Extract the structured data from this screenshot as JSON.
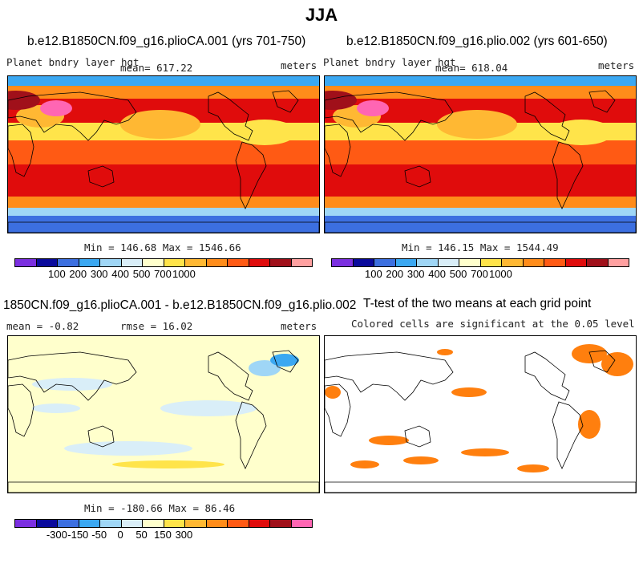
{
  "main_title": "JJA",
  "panel1": {
    "title": "b.e12.B1850CN.f09_g16.plioCA.001 (yrs 701-750)",
    "variable": "Planet bndry layer hgt",
    "mean": "mean= 617.22",
    "units": "meters",
    "minmax": "Min = 146.68 Max = 1546.66"
  },
  "panel2": {
    "title": "b.e12.B1850CN.f09_g16.plio.002 (yrs 601-650)",
    "variable": "Planet bndry layer hgt",
    "mean": "mean= 618.04",
    "units": "meters",
    "minmax": "Min = 146.15 Max = 1544.49"
  },
  "panel3": {
    "title": "1850CN.f09_g16.plioCA.001 - b.e12.B1850CN.f09_g16.plio.002",
    "mean": "mean =  -0.82",
    "rmse": "rmse =  16.02",
    "units": "meters",
    "minmax": "Min = -180.66 Max =  86.46"
  },
  "panel4": {
    "title": "T-test of the two means at each grid point",
    "subtitle": "Colored cells are significant at the 0.05 level",
    "sig_color": "#ff7f0e"
  },
  "colorbar_abs": {
    "labels": [
      "100",
      "200",
      "300",
      "400",
      "500",
      "700",
      "1000"
    ],
    "colors": [
      "#7b2fe0",
      "#0a0a9c",
      "#3c6fe0",
      "#3ba8f2",
      "#9fd6f6",
      "#d9eef8",
      "#ffffcc",
      "#ffe44a",
      "#ffb833",
      "#ff8c1a",
      "#ff5a14",
      "#e00c0c",
      "#a0101a",
      "#ffa0a0"
    ]
  },
  "colorbar_diff": {
    "labels": [
      "-300",
      "-150",
      "-50",
      "0",
      "50",
      "150",
      "300"
    ],
    "colors": [
      "#7b2fe0",
      "#0a0a9c",
      "#3c6fe0",
      "#3ba8f2",
      "#9fd6f6",
      "#d9eef8",
      "#ffffcc",
      "#ffe44a",
      "#ffb833",
      "#ff8c1a",
      "#ff5a14",
      "#e00c0c",
      "#a0101a",
      "#ff66b3"
    ]
  }
}
